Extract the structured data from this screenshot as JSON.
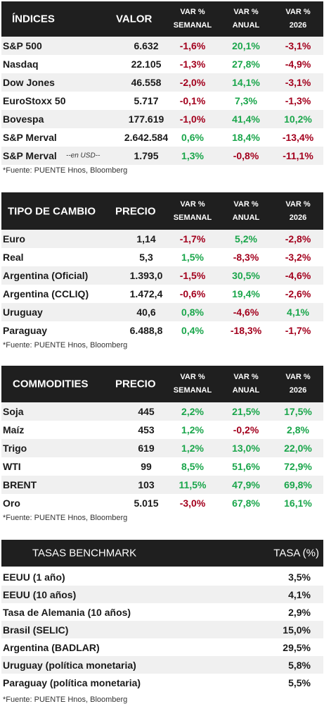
{
  "indices": {
    "headers": [
      "ÍNDICES",
      "VALOR",
      "VAR %",
      "SEMANAL",
      "VAR %",
      "ANUAL",
      "VAR %",
      "2026"
    ],
    "rows": [
      {
        "name": "S&P 500",
        "sub": "",
        "value": "6.632",
        "w": "-1,6%",
        "a": "20,1%",
        "y": "-3,1%"
      },
      {
        "name": "Nasdaq",
        "sub": "",
        "value": "22.105",
        "w": "-1,3%",
        "a": "27,8%",
        "y": "-4,9%"
      },
      {
        "name": "Dow Jones",
        "sub": "",
        "value": "46.558",
        "w": "-2,0%",
        "a": "14,1%",
        "y": "-3,1%"
      },
      {
        "name": "EuroStoxx 50",
        "sub": "",
        "value": "5.717",
        "w": "-0,1%",
        "a": "7,3%",
        "y": "-1,3%"
      },
      {
        "name": "Bovespa",
        "sub": "",
        "value": "177.619",
        "w": "-1,0%",
        "a": "41,4%",
        "y": "10,2%"
      },
      {
        "name": "S&P Merval",
        "sub": "",
        "value": "2.642.584",
        "w": "0,6%",
        "a": "18,4%",
        "y": "-13,4%"
      },
      {
        "name": "S&P Merval",
        "sub": "--en USD--",
        "value": "1.795",
        "w": "1,3%",
        "a": "-0,8%",
        "y": "-11,1%"
      }
    ],
    "note": "*Fuente: PUENTE Hnos, Bloomberg"
  },
  "fx": {
    "headers": [
      "TIPO DE CAMBIO",
      "PRECIO",
      "VAR %",
      "SEMANAL",
      "VAR %",
      "ANUAL",
      "VAR %",
      "2026"
    ],
    "rows": [
      {
        "name": "Euro",
        "value": "1,14",
        "w": "-1,7%",
        "a": "5,2%",
        "y": "-2,8%"
      },
      {
        "name": "Real",
        "value": "5,3",
        "w": "1,5%",
        "a": "-8,3%",
        "y": "-3,2%"
      },
      {
        "name": "Argentina (Oficial)",
        "value": "1.393,0",
        "w": "-1,5%",
        "a": "30,5%",
        "y": "-4,6%"
      },
      {
        "name": "Argentina (CCLIQ)",
        "value": "1.472,4",
        "w": "-0,6%",
        "a": "19,4%",
        "y": "-2,6%"
      },
      {
        "name": "Uruguay",
        "value": "40,6",
        "w": "0,8%",
        "a": "-4,6%",
        "y": "4,1%"
      },
      {
        "name": "Paraguay",
        "value": "6.488,8",
        "w": "0,4%",
        "a": "-18,3%",
        "y": "-1,7%"
      }
    ],
    "note": "*Fuente: PUENTE Hnos, Bloomberg"
  },
  "commodities": {
    "headers": [
      "COMMODITIES",
      "PRECIO",
      "VAR %",
      "SEMANAL",
      "VAR %",
      "ANUAL",
      "VAR %",
      "2026"
    ],
    "rows": [
      {
        "name": "Soja",
        "value": "445",
        "w": "2,2%",
        "a": "21,5%",
        "y": "17,5%"
      },
      {
        "name": "Maíz",
        "value": "453",
        "w": "1,2%",
        "a": "-0,2%",
        "y": "2,8%"
      },
      {
        "name": "Trigo",
        "value": "619",
        "w": "1,2%",
        "a": "13,0%",
        "y": "22,0%"
      },
      {
        "name": "WTI",
        "value": "99",
        "w": "8,5%",
        "a": "51,6%",
        "y": "72,9%"
      },
      {
        "name": "BRENT",
        "value": "103",
        "w": "11,5%",
        "a": "47,9%",
        "y": "69,8%"
      },
      {
        "name": "Oro",
        "value": "5.015",
        "w": "-3,0%",
        "a": "67,8%",
        "y": "16,1%"
      }
    ],
    "note": "*Fuente: PUENTE Hnos, Bloomberg"
  },
  "rates": {
    "headers": [
      "TASAS BENCHMARK",
      "TASA (%)"
    ],
    "rows": [
      {
        "name": "EEUU (1 año)",
        "rate": "3,5%"
      },
      {
        "name": "EEUU (10 años)",
        "rate": "4,1%"
      },
      {
        "name": "Tasa de Alemania (10 años)",
        "rate": "2,9%"
      },
      {
        "name": "Brasil (SELIC)",
        "rate": "15,0%"
      },
      {
        "name": "Argentina (BADLAR)",
        "rate": "29,5%"
      },
      {
        "name": "Uruguay (política monetaria)",
        "rate": "5,8%"
      },
      {
        "name": "Paraguay (política monetaria)",
        "rate": "5,5%"
      }
    ],
    "note": "*Fuente: PUENTE Hnos, Bloomberg"
  },
  "colors": {
    "header_bg": "#1f1f1f",
    "positive": "#1aa64b",
    "negative": "#a3001d",
    "stripe": "#f0f0f0"
  }
}
